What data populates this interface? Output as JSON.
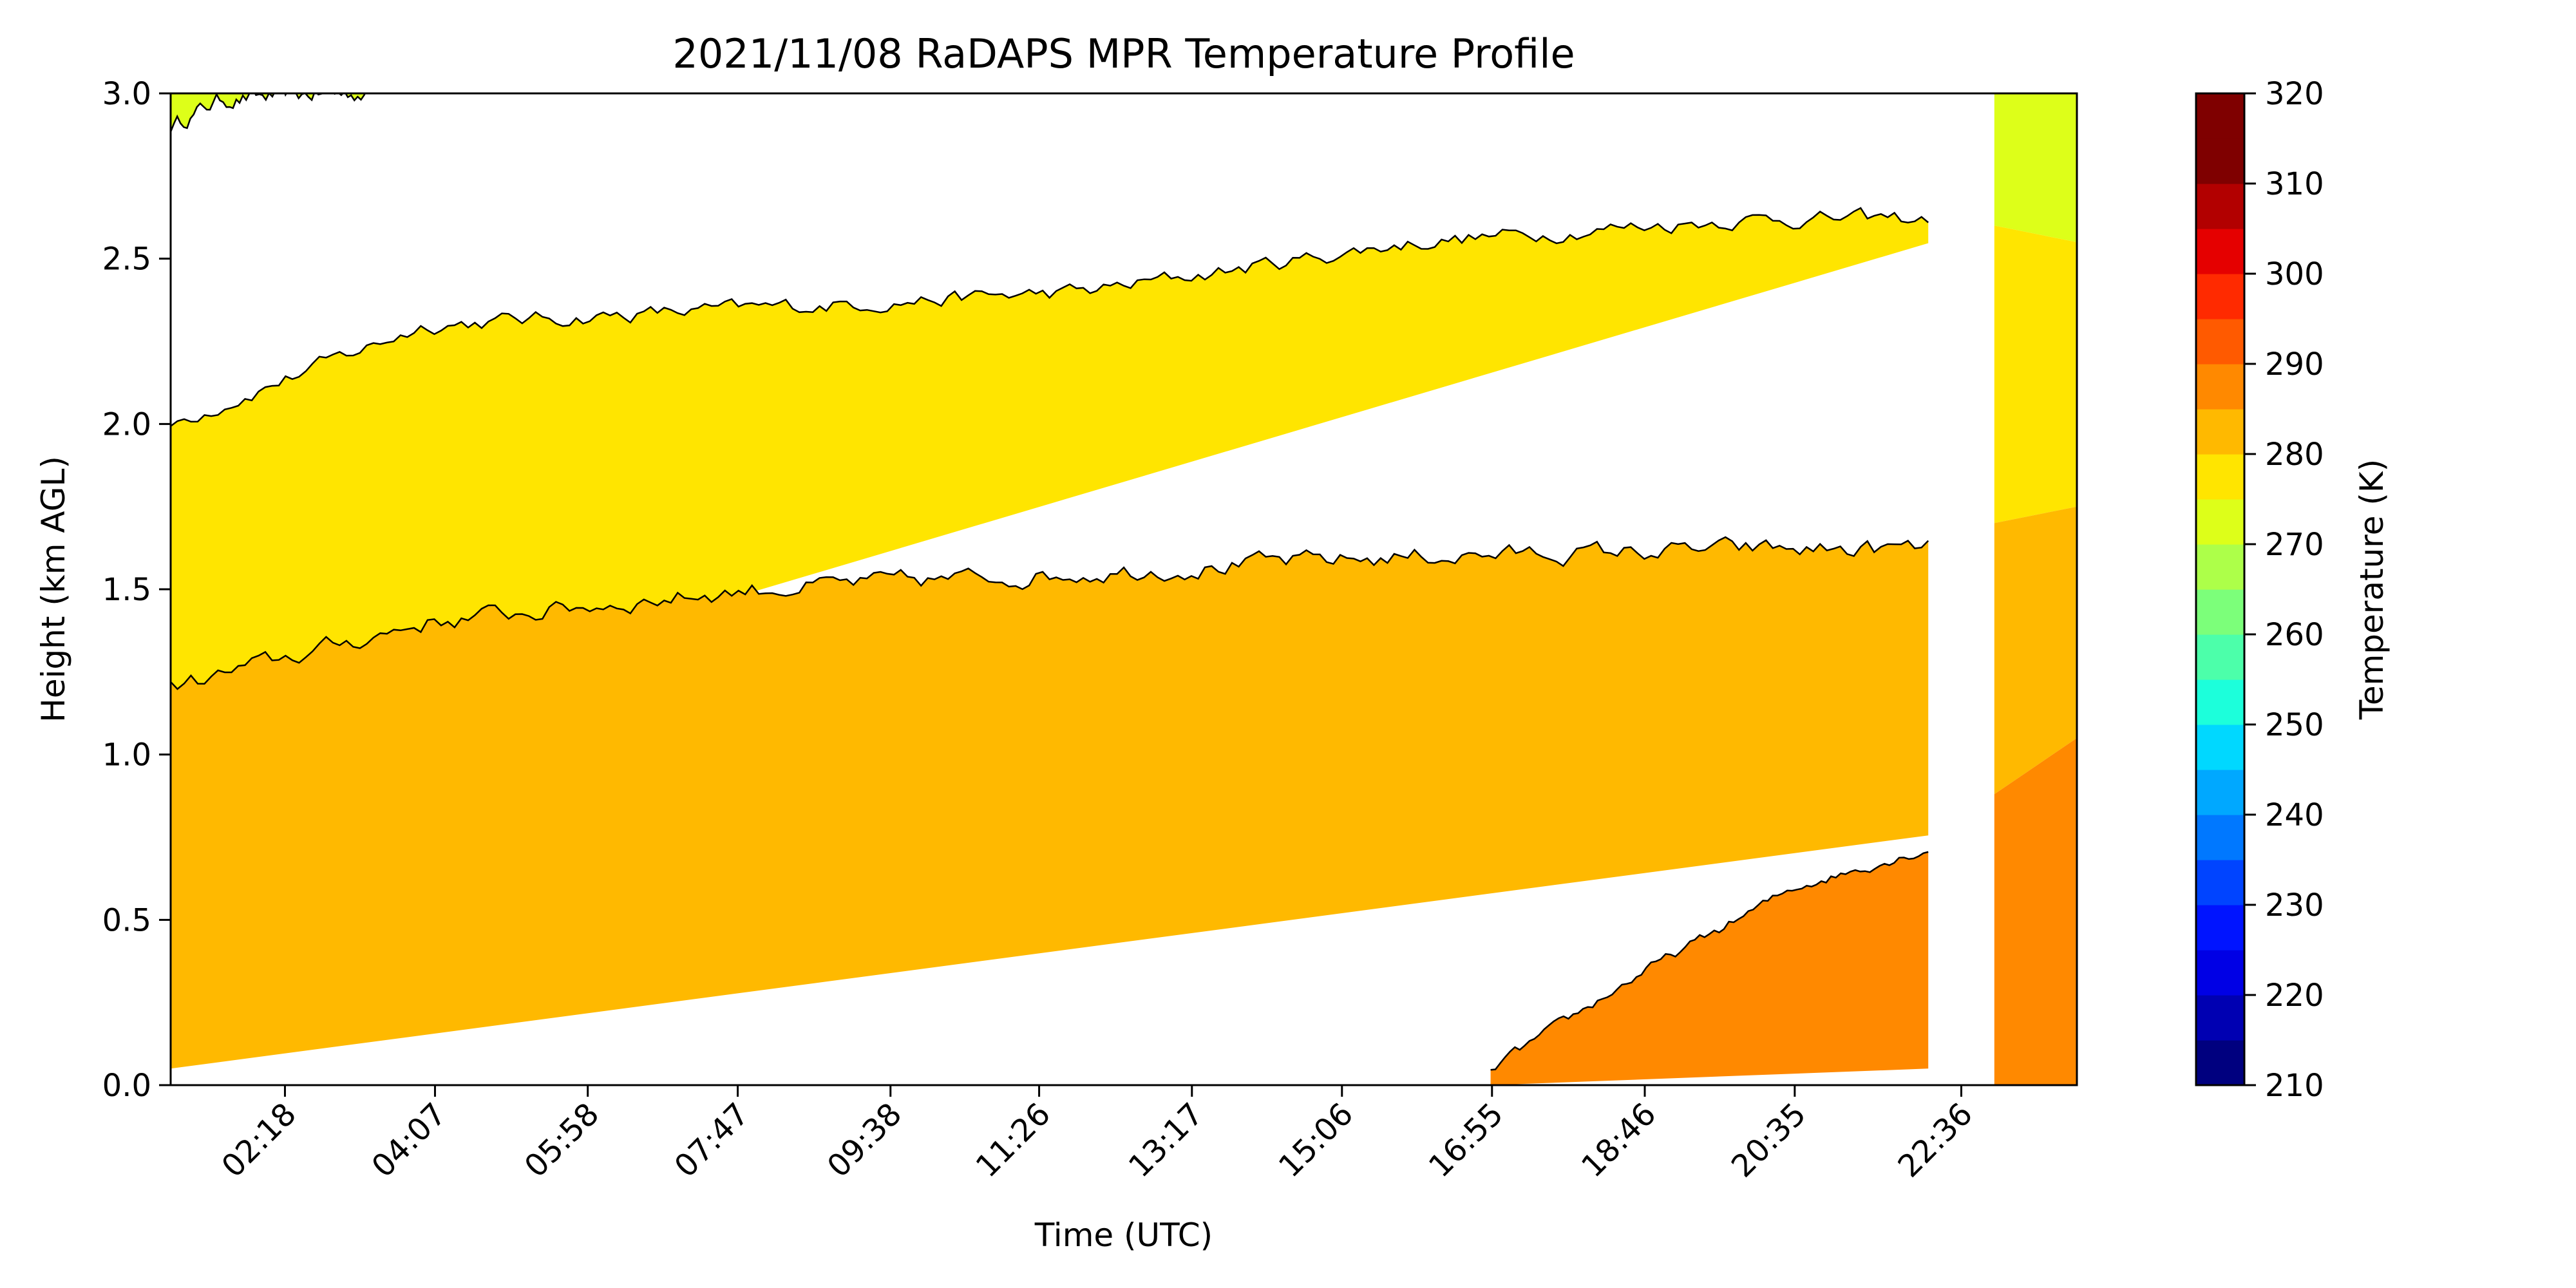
{
  "chart_data": {
    "type": "contour",
    "title": "2021/11/08 RaDAPS MPR Temperature Profile",
    "xlabel": "Time (UTC)",
    "ylabel": "Height (km AGL)",
    "xlim_hours": [
      0.916,
      24.0
    ],
    "ylim": [
      0.0,
      3.0
    ],
    "x_ticks": [
      {
        "label": "02:18",
        "hours": 2.3
      },
      {
        "label": "04:07",
        "hours": 4.117
      },
      {
        "label": "05:58",
        "hours": 5.967
      },
      {
        "label": "07:47",
        "hours": 7.783
      },
      {
        "label": "09:38",
        "hours": 9.633
      },
      {
        "label": "11:26",
        "hours": 11.433
      },
      {
        "label": "13:17",
        "hours": 13.283
      },
      {
        "label": "15:06",
        "hours": 15.1
      },
      {
        "label": "16:55",
        "hours": 16.917
      },
      {
        "label": "18:46",
        "hours": 18.767
      },
      {
        "label": "20:35",
        "hours": 20.583
      },
      {
        "label": "22:36",
        "hours": 22.6
      }
    ],
    "y_ticks": [
      "0.0",
      "0.5",
      "1.0",
      "1.5",
      "2.0",
      "2.5",
      "3.0"
    ],
    "y_tick_values": [
      0.0,
      0.5,
      1.0,
      1.5,
      2.0,
      2.5,
      3.0
    ],
    "colorbar": {
      "label": "Temperature (K)",
      "min": 210,
      "max": 320,
      "step": 5,
      "ticks": [
        "320",
        "310",
        "300",
        "290",
        "280",
        "270",
        "260",
        "250",
        "240",
        "230",
        "220",
        "210"
      ],
      "tick_values": [
        320,
        310,
        300,
        290,
        280,
        270,
        260,
        250,
        240,
        230,
        220,
        210
      ],
      "colors": [
        "#00007f",
        "#0000b2",
        "#0000e5",
        "#0014ff",
        "#0044ff",
        "#0078ff",
        "#00a8ff",
        "#00d8ff",
        "#1cffdb",
        "#4cffaa",
        "#7cff7a",
        "#adff49",
        "#ddff19",
        "#ffe500",
        "#ffb900",
        "#ff8900",
        "#ff5a00",
        "#ff2a00",
        "#e50000",
        "#b20000",
        "#7f0000",
        "#7f0000"
      ]
    },
    "contour_levels": [
      {
        "level_K": 275,
        "height_km_at_x": [
          [
            0.92,
            2.9
          ],
          [
            1.5,
            2.98
          ],
          [
            2.8,
            3.0
          ]
        ]
      },
      {
        "level_K": 280,
        "height_km_at_x": [
          [
            0.92,
            2.0
          ],
          [
            4.0,
            2.3
          ],
          [
            8.0,
            2.35
          ],
          [
            12.0,
            2.4
          ],
          [
            16.0,
            2.55
          ],
          [
            20.0,
            2.62
          ],
          [
            22.3,
            2.62
          ],
          [
            24.0,
            2.55
          ]
        ]
      },
      {
        "level_K": 285,
        "height_km_at_x": [
          [
            0.92,
            1.2
          ],
          [
            4.0,
            1.4
          ],
          [
            8.0,
            1.5
          ],
          [
            12.0,
            1.55
          ],
          [
            16.0,
            1.6
          ],
          [
            20.0,
            1.62
          ],
          [
            22.3,
            1.62
          ],
          [
            24.0,
            1.7
          ]
        ]
      },
      {
        "level_K": 290,
        "height_km_at_x": [
          [
            16.9,
            0.05
          ],
          [
            18.8,
            0.35
          ],
          [
            20.6,
            0.6
          ],
          [
            22.3,
            0.72
          ],
          [
            23.0,
            0.9
          ],
          [
            24.0,
            1.05
          ]
        ]
      }
    ],
    "missing_data_interval_hours": [
      22.2,
      23.0
    ],
    "colors": {
      "band_275_280": "#ddff19",
      "band_280_285": "#ffe500",
      "band_285_290": "#ffb900",
      "band_290_295": "#ff8900",
      "band_295_300": "#ff5a00"
    }
  }
}
